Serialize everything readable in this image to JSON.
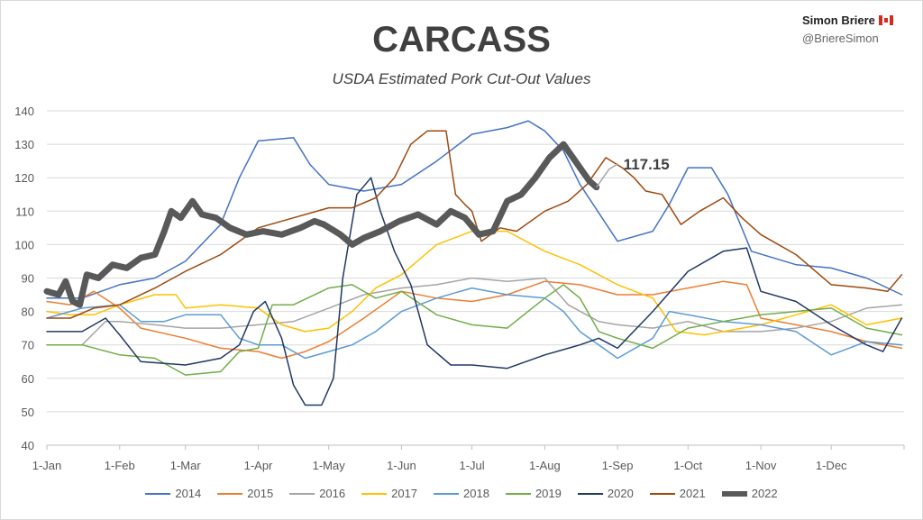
{
  "header": {
    "author": "Simon Briere",
    "handle": "@BriereSimon"
  },
  "chart_data": {
    "type": "line",
    "title": "CARCASS",
    "subtitle": "USDA Estimated Pork Cut-Out Values",
    "xlabel": "",
    "ylabel": "",
    "ylim": [
      40,
      140
    ],
    "yticks": [
      40,
      50,
      60,
      70,
      80,
      90,
      100,
      110,
      120,
      130,
      140
    ],
    "xlim_days": [
      0,
      365
    ],
    "xticks": [
      {
        "label": "1-Jan",
        "day": 0
      },
      {
        "label": "1-Feb",
        "day": 31
      },
      {
        "label": "1-Mar",
        "day": 59
      },
      {
        "label": "1-Apr",
        "day": 90
      },
      {
        "label": "1-May",
        "day": 120
      },
      {
        "label": "1-Jun",
        "day": 151
      },
      {
        "label": "1-Jul",
        "day": 181
      },
      {
        "label": "1-Aug",
        "day": 212
      },
      {
        "label": "1-Sep",
        "day": 243
      },
      {
        "label": "1-Oct",
        "day": 273
      },
      {
        "label": "1-Nov",
        "day": 304
      },
      {
        "label": "1-Dec",
        "day": 334
      }
    ],
    "grid": true,
    "legend_position": "bottom",
    "annotation": {
      "text": "117.15",
      "series": "2022",
      "day": 234,
      "value": 117.15
    },
    "series": [
      {
        "name": "2014",
        "color": "#4472c4",
        "width": 1.5,
        "points": [
          [
            0,
            84
          ],
          [
            15,
            84
          ],
          [
            31,
            88
          ],
          [
            46,
            90
          ],
          [
            59,
            95
          ],
          [
            74,
            106
          ],
          [
            82,
            120
          ],
          [
            90,
            131
          ],
          [
            105,
            132
          ],
          [
            112,
            124
          ],
          [
            120,
            118
          ],
          [
            135,
            116
          ],
          [
            151,
            118
          ],
          [
            166,
            125
          ],
          [
            181,
            133
          ],
          [
            196,
            135
          ],
          [
            205,
            137
          ],
          [
            212,
            134
          ],
          [
            220,
            128
          ],
          [
            227,
            118
          ],
          [
            243,
            101
          ],
          [
            258,
            104
          ],
          [
            265,
            112
          ],
          [
            273,
            123
          ],
          [
            283,
            123
          ],
          [
            290,
            115
          ],
          [
            300,
            98
          ],
          [
            319,
            94
          ],
          [
            334,
            93
          ],
          [
            349,
            90
          ],
          [
            364,
            85
          ]
        ]
      },
      {
        "name": "2015",
        "color": "#ed7d31",
        "width": 1.5,
        "points": [
          [
            0,
            83
          ],
          [
            10,
            82
          ],
          [
            20,
            86
          ],
          [
            31,
            81
          ],
          [
            40,
            75
          ],
          [
            59,
            72
          ],
          [
            74,
            69
          ],
          [
            90,
            68
          ],
          [
            100,
            66
          ],
          [
            110,
            68
          ],
          [
            120,
            71
          ],
          [
            135,
            78
          ],
          [
            151,
            86
          ],
          [
            166,
            84
          ],
          [
            181,
            83
          ],
          [
            196,
            85
          ],
          [
            212,
            89
          ],
          [
            227,
            88
          ],
          [
            243,
            85
          ],
          [
            258,
            85
          ],
          [
            273,
            87
          ],
          [
            288,
            89
          ],
          [
            298,
            88
          ],
          [
            304,
            78
          ],
          [
            319,
            76
          ],
          [
            334,
            74
          ],
          [
            349,
            71
          ],
          [
            364,
            69
          ]
        ]
      },
      {
        "name": "2016",
        "color": "#a5a5a5",
        "width": 1.5,
        "points": [
          [
            0,
            70
          ],
          [
            15,
            70
          ],
          [
            25,
            77
          ],
          [
            31,
            77
          ],
          [
            46,
            76
          ],
          [
            59,
            75
          ],
          [
            74,
            75
          ],
          [
            90,
            76
          ],
          [
            105,
            77
          ],
          [
            120,
            81
          ],
          [
            135,
            85
          ],
          [
            151,
            87
          ],
          [
            166,
            88
          ],
          [
            181,
            90
          ],
          [
            196,
            89
          ],
          [
            212,
            90
          ],
          [
            222,
            82
          ],
          [
            235,
            77
          ],
          [
            243,
            76
          ],
          [
            258,
            75
          ],
          [
            273,
            77
          ],
          [
            288,
            74
          ],
          [
            304,
            74
          ],
          [
            319,
            75
          ],
          [
            334,
            77
          ],
          [
            349,
            81
          ],
          [
            364,
            82
          ]
        ]
      },
      {
        "name": "2017",
        "color": "#ffc000",
        "width": 1.5,
        "points": [
          [
            0,
            80
          ],
          [
            10,
            79
          ],
          [
            20,
            79
          ],
          [
            31,
            82
          ],
          [
            46,
            85
          ],
          [
            55,
            85
          ],
          [
            59,
            81
          ],
          [
            74,
            82
          ],
          [
            90,
            81
          ],
          [
            100,
            76
          ],
          [
            110,
            74
          ],
          [
            120,
            75
          ],
          [
            130,
            80
          ],
          [
            140,
            87
          ],
          [
            151,
            91
          ],
          [
            166,
            100
          ],
          [
            181,
            104
          ],
          [
            196,
            104
          ],
          [
            212,
            98
          ],
          [
            227,
            94
          ],
          [
            243,
            88
          ],
          [
            258,
            84
          ],
          [
            268,
            74
          ],
          [
            280,
            73
          ],
          [
            288,
            74
          ],
          [
            304,
            76
          ],
          [
            319,
            79
          ],
          [
            334,
            82
          ],
          [
            349,
            76
          ],
          [
            364,
            78
          ]
        ]
      },
      {
        "name": "2018",
        "color": "#5b9bd5",
        "width": 1.5,
        "points": [
          [
            0,
            78
          ],
          [
            15,
            81
          ],
          [
            31,
            82
          ],
          [
            40,
            77
          ],
          [
            50,
            77
          ],
          [
            59,
            79
          ],
          [
            74,
            79
          ],
          [
            82,
            72
          ],
          [
            90,
            70
          ],
          [
            100,
            70
          ],
          [
            110,
            66
          ],
          [
            120,
            68
          ],
          [
            130,
            70
          ],
          [
            140,
            74
          ],
          [
            151,
            80
          ],
          [
            166,
            84
          ],
          [
            181,
            87
          ],
          [
            196,
            85
          ],
          [
            212,
            84
          ],
          [
            220,
            80
          ],
          [
            227,
            74
          ],
          [
            243,
            66
          ],
          [
            258,
            72
          ],
          [
            265,
            80
          ],
          [
            273,
            79
          ],
          [
            288,
            77
          ],
          [
            304,
            76
          ],
          [
            319,
            74
          ],
          [
            334,
            67
          ],
          [
            349,
            71
          ],
          [
            364,
            70
          ]
        ]
      },
      {
        "name": "2019",
        "color": "#70ad47",
        "width": 1.5,
        "points": [
          [
            0,
            70
          ],
          [
            15,
            70
          ],
          [
            31,
            67
          ],
          [
            46,
            66
          ],
          [
            59,
            61
          ],
          [
            74,
            62
          ],
          [
            82,
            68
          ],
          [
            90,
            69
          ],
          [
            96,
            82
          ],
          [
            105,
            82
          ],
          [
            120,
            87
          ],
          [
            130,
            88
          ],
          [
            140,
            84
          ],
          [
            151,
            86
          ],
          [
            166,
            79
          ],
          [
            181,
            76
          ],
          [
            196,
            75
          ],
          [
            212,
            84
          ],
          [
            220,
            88
          ],
          [
            227,
            84
          ],
          [
            235,
            74
          ],
          [
            243,
            72
          ],
          [
            258,
            69
          ],
          [
            273,
            75
          ],
          [
            288,
            77
          ],
          [
            304,
            79
          ],
          [
            319,
            80
          ],
          [
            334,
            81
          ],
          [
            349,
            75
          ],
          [
            364,
            73
          ]
        ]
      },
      {
        "name": "2020",
        "color": "#203864",
        "width": 1.5,
        "points": [
          [
            0,
            74
          ],
          [
            15,
            74
          ],
          [
            25,
            78
          ],
          [
            31,
            73
          ],
          [
            40,
            65
          ],
          [
            59,
            64
          ],
          [
            74,
            66
          ],
          [
            82,
            70
          ],
          [
            88,
            80
          ],
          [
            93,
            83
          ],
          [
            100,
            72
          ],
          [
            105,
            58
          ],
          [
            110,
            52
          ],
          [
            117,
            52
          ],
          [
            122,
            60
          ],
          [
            126,
            90
          ],
          [
            132,
            115
          ],
          [
            138,
            120
          ],
          [
            142,
            110
          ],
          [
            148,
            98
          ],
          [
            155,
            88
          ],
          [
            162,
            70
          ],
          [
            172,
            64
          ],
          [
            181,
            64
          ],
          [
            196,
            63
          ],
          [
            212,
            67
          ],
          [
            227,
            70
          ],
          [
            235,
            72
          ],
          [
            243,
            69
          ],
          [
            258,
            80
          ],
          [
            273,
            92
          ],
          [
            288,
            98
          ],
          [
            298,
            99
          ],
          [
            304,
            86
          ],
          [
            319,
            83
          ],
          [
            334,
            76
          ],
          [
            349,
            70
          ],
          [
            356,
            68
          ],
          [
            364,
            78
          ]
        ]
      },
      {
        "name": "2021",
        "color": "#9e480e",
        "width": 1.5,
        "points": [
          [
            0,
            78
          ],
          [
            10,
            78
          ],
          [
            20,
            81
          ],
          [
            31,
            82
          ],
          [
            46,
            87
          ],
          [
            59,
            92
          ],
          [
            74,
            97
          ],
          [
            90,
            105
          ],
          [
            105,
            108
          ],
          [
            120,
            111
          ],
          [
            130,
            111
          ],
          [
            140,
            114
          ],
          [
            148,
            120
          ],
          [
            155,
            130
          ],
          [
            162,
            134
          ],
          [
            170,
            134
          ],
          [
            174,
            115
          ],
          [
            178,
            112
          ],
          [
            181,
            110
          ],
          [
            185,
            101
          ],
          [
            193,
            105
          ],
          [
            200,
            104
          ],
          [
            212,
            110
          ],
          [
            222,
            113
          ],
          [
            230,
            118
          ],
          [
            238,
            126
          ],
          [
            245,
            123
          ],
          [
            250,
            120
          ],
          [
            255,
            116
          ],
          [
            262,
            115
          ],
          [
            270,
            106
          ],
          [
            278,
            110
          ],
          [
            288,
            114
          ],
          [
            296,
            108
          ],
          [
            304,
            103
          ],
          [
            319,
            97
          ],
          [
            334,
            88
          ],
          [
            349,
            87
          ],
          [
            358,
            86
          ],
          [
            364,
            91
          ]
        ]
      },
      {
        "name": "2022",
        "color": "#595959",
        "width": 7,
        "points": [
          [
            0,
            86
          ],
          [
            5,
            85
          ],
          [
            8,
            89
          ],
          [
            11,
            83
          ],
          [
            14,
            82
          ],
          [
            17,
            91
          ],
          [
            22,
            90
          ],
          [
            28,
            94
          ],
          [
            34,
            93
          ],
          [
            40,
            96
          ],
          [
            46,
            97
          ],
          [
            50,
            104
          ],
          [
            53,
            110
          ],
          [
            57,
            108
          ],
          [
            62,
            113
          ],
          [
            66,
            109
          ],
          [
            72,
            108
          ],
          [
            78,
            105
          ],
          [
            85,
            103
          ],
          [
            92,
            104
          ],
          [
            100,
            103
          ],
          [
            108,
            105
          ],
          [
            114,
            107
          ],
          [
            118,
            106
          ],
          [
            125,
            103
          ],
          [
            130,
            100
          ],
          [
            135,
            102
          ],
          [
            142,
            104
          ],
          [
            150,
            107
          ],
          [
            158,
            109
          ],
          [
            166,
            106
          ],
          [
            172,
            110
          ],
          [
            178,
            108
          ],
          [
            184,
            103
          ],
          [
            190,
            104
          ],
          [
            196,
            113
          ],
          [
            202,
            115
          ],
          [
            208,
            120
          ],
          [
            214,
            126
          ],
          [
            220,
            130
          ],
          [
            224,
            126
          ],
          [
            228,
            122
          ],
          [
            231,
            119
          ],
          [
            234,
            117.15
          ]
        ]
      }
    ]
  }
}
